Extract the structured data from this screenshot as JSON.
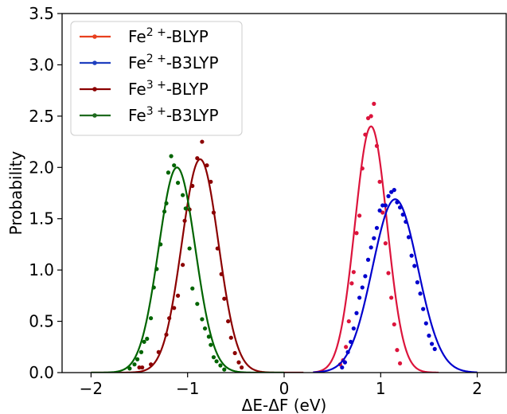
{
  "chart_data": {
    "type": "line",
    "title": "",
    "xlabel": "ΔE-ΔF (eV)",
    "ylabel": "Probability",
    "xlim": [
      -2.3,
      2.3
    ],
    "ylim": [
      0,
      3.5
    ],
    "xticks": [
      {
        "value": -2,
        "label": "−2"
      },
      {
        "value": -1,
        "label": "−1"
      },
      {
        "value": 0,
        "label": "0"
      },
      {
        "value": 1,
        "label": "1"
      },
      {
        "value": 2,
        "label": "2"
      }
    ],
    "yticks": [
      {
        "value": 0.0,
        "label": "0.0"
      },
      {
        "value": 0.5,
        "label": "0.5"
      },
      {
        "value": 1.0,
        "label": "1.0"
      },
      {
        "value": 1.5,
        "label": "1.5"
      },
      {
        "value": 2.0,
        "label": "2.0"
      },
      {
        "value": 2.5,
        "label": "2.5"
      },
      {
        "value": 3.0,
        "label": "3.0"
      },
      {
        "value": 3.5,
        "label": "3.5"
      }
    ],
    "grid": false,
    "legend_position": "top-left",
    "series": [
      {
        "legend_base": "Fe",
        "legend_sup": "2+",
        "legend_suffix": "-BLYP",
        "name": "Fe2+-BLYP",
        "color": "#dc143c",
        "legend_color": "#e8401f",
        "fit": {
          "mean": 0.9,
          "sigma": 0.166,
          "peak": 2.4,
          "x_range": [
            0.3,
            1.6
          ]
        },
        "points": [
          {
            "x": 0.58,
            "y": 0.08
          },
          {
            "x": 0.61,
            "y": 0.12
          },
          {
            "x": 0.64,
            "y": 0.25
          },
          {
            "x": 0.67,
            "y": 0.5
          },
          {
            "x": 0.7,
            "y": 0.87
          },
          {
            "x": 0.72,
            "y": 0.98
          },
          {
            "x": 0.75,
            "y": 1.36
          },
          {
            "x": 0.78,
            "y": 1.53
          },
          {
            "x": 0.81,
            "y": 1.99
          },
          {
            "x": 0.84,
            "y": 2.32
          },
          {
            "x": 0.87,
            "y": 2.48
          },
          {
            "x": 0.9,
            "y": 2.5
          },
          {
            "x": 0.93,
            "y": 2.62
          },
          {
            "x": 0.96,
            "y": 2.21
          },
          {
            "x": 0.99,
            "y": 1.86
          },
          {
            "x": 1.02,
            "y": 1.56
          },
          {
            "x": 1.05,
            "y": 1.26
          },
          {
            "x": 1.08,
            "y": 0.97
          },
          {
            "x": 1.11,
            "y": 0.73
          },
          {
            "x": 1.14,
            "y": 0.47
          },
          {
            "x": 1.17,
            "y": 0.22
          },
          {
            "x": 1.2,
            "y": 0.09
          }
        ]
      },
      {
        "legend_base": "Fe",
        "legend_sup": "2+",
        "legend_suffix": "-B3LYP",
        "name": "Fe2+-B3LYP",
        "color": "#0000cd",
        "legend_color": "#1f3fbf",
        "fit": {
          "mean": 1.15,
          "sigma": 0.235,
          "peak": 1.69,
          "x_range": [
            0.3,
            2.0
          ]
        },
        "points": [
          {
            "x": 0.6,
            "y": 0.05
          },
          {
            "x": 0.63,
            "y": 0.1
          },
          {
            "x": 0.66,
            "y": 0.2
          },
          {
            "x": 0.69,
            "y": 0.3
          },
          {
            "x": 0.72,
            "y": 0.43
          },
          {
            "x": 0.75,
            "y": 0.58
          },
          {
            "x": 0.78,
            "y": 0.73
          },
          {
            "x": 0.81,
            "y": 0.83
          },
          {
            "x": 0.84,
            "y": 0.94
          },
          {
            "x": 0.87,
            "y": 1.1
          },
          {
            "x": 0.9,
            "y": 1.22
          },
          {
            "x": 0.93,
            "y": 1.31
          },
          {
            "x": 0.96,
            "y": 1.41
          },
          {
            "x": 0.99,
            "y": 1.58
          },
          {
            "x": 1.02,
            "y": 1.63
          },
          {
            "x": 1.05,
            "y": 1.63
          },
          {
            "x": 1.08,
            "y": 1.72
          },
          {
            "x": 1.11,
            "y": 1.76
          },
          {
            "x": 1.14,
            "y": 1.78
          },
          {
            "x": 1.17,
            "y": 1.66
          },
          {
            "x": 1.2,
            "y": 1.61
          },
          {
            "x": 1.23,
            "y": 1.54
          },
          {
            "x": 1.26,
            "y": 1.47
          },
          {
            "x": 1.29,
            "y": 1.32
          },
          {
            "x": 1.32,
            "y": 1.14
          },
          {
            "x": 1.35,
            "y": 1.04
          },
          {
            "x": 1.38,
            "y": 0.88
          },
          {
            "x": 1.41,
            "y": 0.77
          },
          {
            "x": 1.44,
            "y": 0.62
          },
          {
            "x": 1.47,
            "y": 0.48
          },
          {
            "x": 1.5,
            "y": 0.36
          },
          {
            "x": 1.53,
            "y": 0.28
          },
          {
            "x": 1.56,
            "y": 0.23
          }
        ]
      },
      {
        "legend_base": "Fe",
        "legend_sup": "3+",
        "legend_suffix": "-BLYP",
        "name": "Fe3+-BLYP",
        "color": "#8b0000",
        "legend_color": "#8b0000",
        "fit": {
          "mean": -0.87,
          "sigma": 0.19,
          "peak": 2.08,
          "x_range": [
            -2.0,
            0.2
          ]
        },
        "points": [
          {
            "x": -1.5,
            "y": 0.05
          },
          {
            "x": -1.47,
            "y": 0.05
          },
          {
            "x": -1.38,
            "y": 0.08
          },
          {
            "x": -1.3,
            "y": 0.2
          },
          {
            "x": -1.22,
            "y": 0.37
          },
          {
            "x": -1.19,
            "y": 0.53
          },
          {
            "x": -1.14,
            "y": 0.63
          },
          {
            "x": -1.1,
            "y": 0.75
          },
          {
            "x": -1.05,
            "y": 1.05
          },
          {
            "x": -1.03,
            "y": 1.48
          },
          {
            "x": -0.98,
            "y": 1.59
          },
          {
            "x": -0.95,
            "y": 1.82
          },
          {
            "x": -0.9,
            "y": 2.09
          },
          {
            "x": -0.85,
            "y": 2.25
          },
          {
            "x": -0.8,
            "y": 2.02
          },
          {
            "x": -0.76,
            "y": 1.86
          },
          {
            "x": -0.73,
            "y": 1.56
          },
          {
            "x": -0.69,
            "y": 1.21
          },
          {
            "x": -0.65,
            "y": 0.96
          },
          {
            "x": -0.62,
            "y": 0.72
          },
          {
            "x": -0.58,
            "y": 0.5
          },
          {
            "x": -0.55,
            "y": 0.34
          },
          {
            "x": -0.51,
            "y": 0.19
          },
          {
            "x": -0.47,
            "y": 0.1
          },
          {
            "x": -0.44,
            "y": 0.05
          }
        ]
      },
      {
        "legend_base": "Fe",
        "legend_sup": "3+",
        "legend_suffix": "-B3LYP",
        "name": "Fe3+-B3LYP",
        "color": "#006400",
        "legend_color": "#1f6b1f",
        "fit": {
          "mean": -1.11,
          "sigma": 0.19,
          "peak": 2.0,
          "x_range": [
            -2.0,
            0.0
          ]
        },
        "points": [
          {
            "x": -1.6,
            "y": 0.04
          },
          {
            "x": -1.55,
            "y": 0.08
          },
          {
            "x": -1.52,
            "y": 0.13
          },
          {
            "x": -1.48,
            "y": 0.2
          },
          {
            "x": -1.45,
            "y": 0.3
          },
          {
            "x": -1.42,
            "y": 0.33
          },
          {
            "x": -1.38,
            "y": 0.53
          },
          {
            "x": -1.35,
            "y": 0.83
          },
          {
            "x": -1.32,
            "y": 1.01
          },
          {
            "x": -1.28,
            "y": 1.25
          },
          {
            "x": -1.24,
            "y": 1.57
          },
          {
            "x": -1.22,
            "y": 1.65
          },
          {
            "x": -1.2,
            "y": 1.95
          },
          {
            "x": -1.17,
            "y": 2.11
          },
          {
            "x": -1.14,
            "y": 2.02
          },
          {
            "x": -1.1,
            "y": 1.85
          },
          {
            "x": -1.05,
            "y": 1.73
          },
          {
            "x": -1.02,
            "y": 1.6
          },
          {
            "x": -0.98,
            "y": 1.21
          },
          {
            "x": -0.95,
            "y": 0.82
          },
          {
            "x": -0.9,
            "y": 0.67
          },
          {
            "x": -0.85,
            "y": 0.52
          },
          {
            "x": -0.82,
            "y": 0.43
          },
          {
            "x": -0.78,
            "y": 0.35
          },
          {
            "x": -0.76,
            "y": 0.27
          },
          {
            "x": -0.73,
            "y": 0.15
          },
          {
            "x": -0.7,
            "y": 0.11
          },
          {
            "x": -0.66,
            "y": 0.07
          },
          {
            "x": -0.62,
            "y": 0.03
          }
        ]
      }
    ]
  }
}
